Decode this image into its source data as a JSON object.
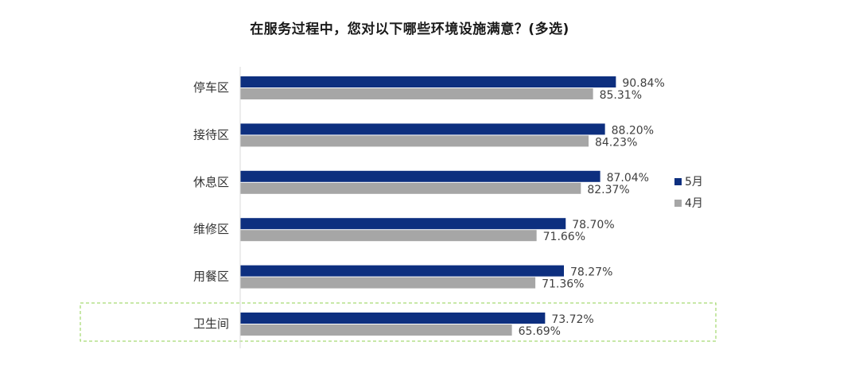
{
  "chart_data": {
    "type": "bar",
    "orientation": "horizontal",
    "title": "在服务过程中，您对以下哪些环境设施满意？(多选)",
    "categories": [
      "停车区",
      "接待区",
      "休息区",
      "维修区",
      "用餐区",
      "卫生间"
    ],
    "series": [
      {
        "name": "5月",
        "values": [
          90.84,
          88.2,
          87.04,
          78.7,
          78.27,
          73.72
        ],
        "labels": [
          "90.84%",
          "88.20%",
          "87.04%",
          "78.70%",
          "78.27%",
          "73.72%"
        ],
        "color": "#0d2f7f"
      },
      {
        "name": "4月",
        "values": [
          85.31,
          84.23,
          82.37,
          71.66,
          71.36,
          65.69
        ],
        "labels": [
          "85.31%",
          "84.23%",
          "82.37%",
          "71.66%",
          "71.36%",
          "65.69%"
        ],
        "color": "#a6a6a6"
      }
    ],
    "xlim": [
      0,
      100
    ],
    "unit": "%",
    "grid": false,
    "legend_position": "right",
    "highlighted_category": "卫生间",
    "highlight_color": "#92d050"
  }
}
